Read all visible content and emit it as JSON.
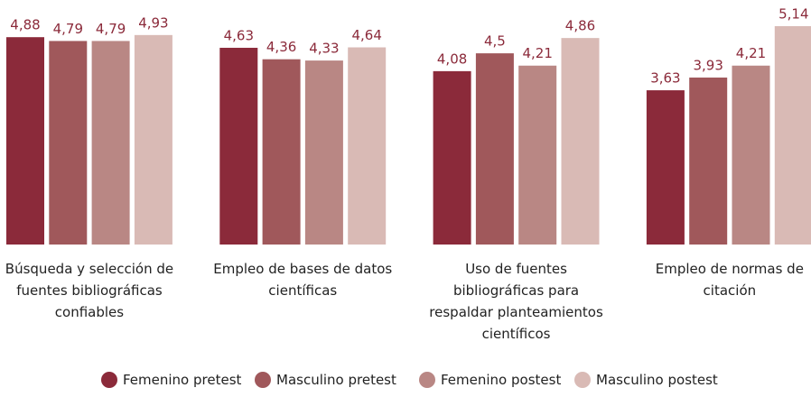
{
  "chart_data": {
    "type": "bar",
    "categories": [
      "Búsqueda y selección de fuentes bibliográficas confiables",
      "Empleo de bases de datos científicas",
      "Uso de fuentes bibliográficas para respaldar planteamientos científicos",
      "Empleo de normas de citación"
    ],
    "series": [
      {
        "name": "Femenino pretest",
        "color": "#8b2a3a",
        "values": [
          4.88,
          4.63,
          4.08,
          3.63
        ],
        "value_labels": [
          "4,88",
          "4,63",
          "4,08",
          "3,63"
        ]
      },
      {
        "name": "Masculino pretest",
        "color": "#a0585b",
        "values": [
          4.79,
          4.36,
          4.5,
          3.93
        ],
        "value_labels": [
          "4,79",
          "4,36",
          "4,5",
          "3,93"
        ]
      },
      {
        "name": "Femenino postest",
        "color": "#b98784",
        "values": [
          4.79,
          4.33,
          4.21,
          4.21
        ],
        "value_labels": [
          "4,79",
          "4,33",
          "4,21",
          "4,21"
        ]
      },
      {
        "name": "Masculino postest",
        "color": "#d9bab5",
        "values": [
          4.93,
          4.64,
          4.86,
          5.14
        ],
        "value_labels": [
          "4,93",
          "4,64",
          "4,86",
          "5,14"
        ]
      }
    ],
    "ylim": [
      0,
      5.5
    ],
    "legend": "bottom"
  }
}
